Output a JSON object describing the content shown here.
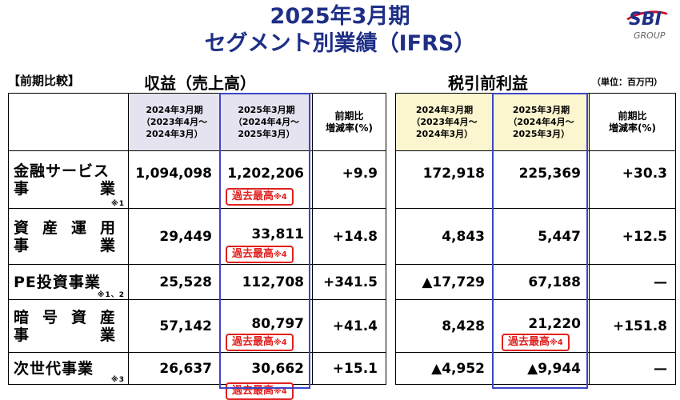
{
  "title_line1": "2025年3月期",
  "title_line2": "セグメント別業績（IFRS）",
  "logo": {
    "brand": "SBI",
    "sub": "GROUP"
  },
  "compare_label": "【前期比較】",
  "revenue_label": "収益（売上高）",
  "ebt_label": "税引前利益",
  "unit_label": "（単位：百万円）",
  "headers": {
    "fy2024_l1": "2024年3月期",
    "fy2024_l2": "（2023年4月～",
    "fy2024_l3": "2024年3月）",
    "fy2025_l1": "2025年3月期",
    "fy2025_l2": "（2024年4月～",
    "fy2025_l3": "2025年3月）",
    "rate_l1": "前期比",
    "rate_l2": "増減率(%)"
  },
  "record_badge": "過去最高",
  "record_note": "※4",
  "segments": [
    {
      "name_l1": "金融サービス",
      "name_l2": "事業",
      "note": "※1",
      "rev_2024": "1,094,098",
      "rev_2025": "1,202,206",
      "rev_rate": "+9.9",
      "ebt_2024": "172,918",
      "ebt_2025": "225,369",
      "ebt_rate": "+30.3"
    },
    {
      "name_l1": "資産運用",
      "name_l2": "事業",
      "note": "",
      "rev_2024": "29,449",
      "rev_2025": "33,811",
      "rev_rate": "+14.8",
      "ebt_2024": "4,843",
      "ebt_2025": "5,447",
      "ebt_rate": "+12.5"
    },
    {
      "name_l1": "PE投資事業",
      "name_l2": "",
      "note": "※1、2",
      "rev_2024": "25,528",
      "rev_2025": "112,708",
      "rev_rate": "+341.5",
      "ebt_2024": "▲17,729",
      "ebt_2025": "67,188",
      "ebt_rate": "—"
    },
    {
      "name_l1": "暗号資産",
      "name_l2": "事業",
      "note": "",
      "rev_2024": "57,142",
      "rev_2025": "80,797",
      "rev_rate": "+41.4",
      "ebt_2024": "8,428",
      "ebt_2025": "21,220",
      "ebt_rate": "+151.8"
    },
    {
      "name_l1": "次世代事業",
      "name_l2": "",
      "note": "※3",
      "rev_2024": "26,637",
      "rev_2025": "30,662",
      "rev_rate": "+15.1",
      "ebt_2024": "▲4,952",
      "ebt_2025": "▲9,944",
      "ebt_rate": "—"
    }
  ],
  "colors": {
    "title": "#1f2f86",
    "highlight_border": "#3a46c8",
    "badge": "#e0211f",
    "header_revenue_bg": "#e6e3f0",
    "header_ebt_bg": "#fbf6cf"
  }
}
